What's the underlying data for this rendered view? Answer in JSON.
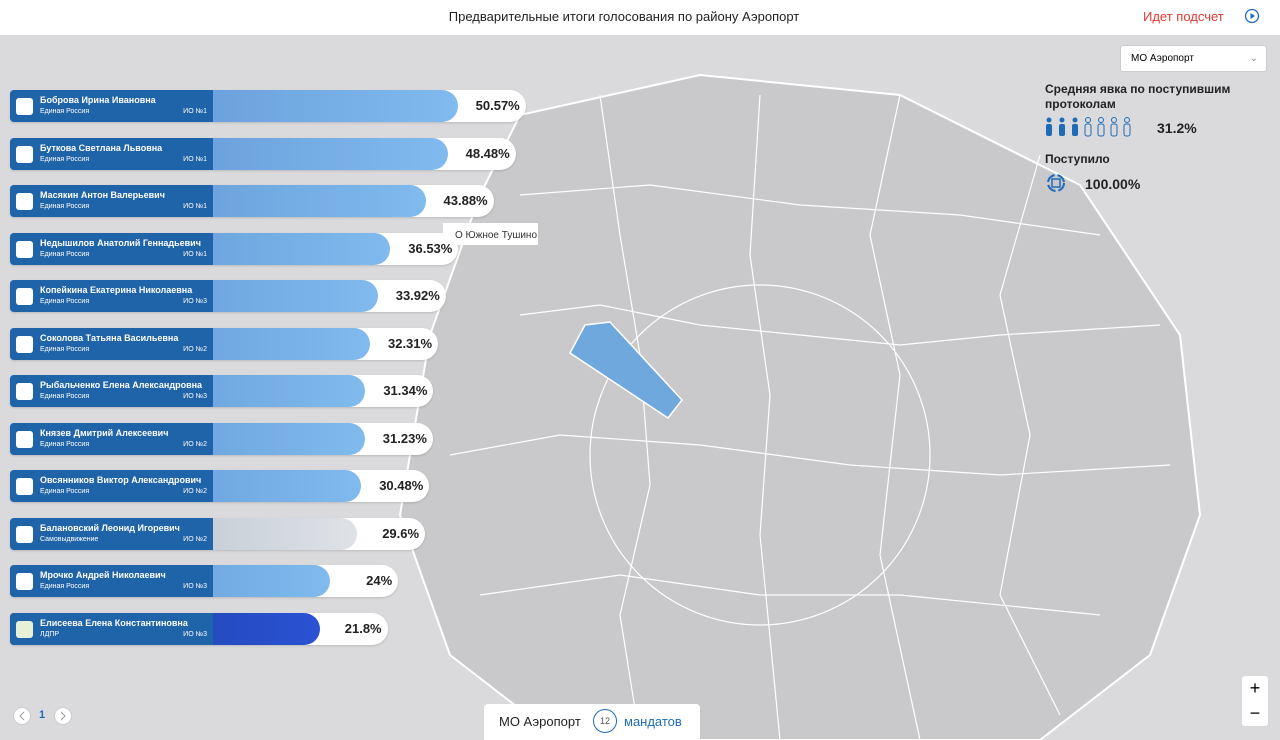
{
  "header": {
    "title": "Предварительные итоги голосования по району Аэропорт",
    "status": "Идет подсчет"
  },
  "district_select": "МО Аэропорт",
  "turnout": {
    "title": "Средняя явка по поступившим протоколам",
    "value": "31.2%",
    "received_label": "Поступило",
    "received_value": "100.00%"
  },
  "map_label": "О Южное Тушино",
  "candidates": [
    {
      "name": "Боброва Ирина Ивановна",
      "party": "Единая Россия",
      "district": "ИО №1",
      "value": 50.57,
      "value_label": "50.57%",
      "color": "blue"
    },
    {
      "name": "Буткова Светлана Львовна",
      "party": "Единая Россия",
      "district": "ИО №1",
      "value": 48.48,
      "value_label": "48.48%",
      "color": "blue"
    },
    {
      "name": "Масякин Антон Валерьевич",
      "party": "Единая Россия",
      "district": "ИО №1",
      "value": 43.88,
      "value_label": "43.88%",
      "color": "blue"
    },
    {
      "name": "Недышилов Анатолий Геннадьевич",
      "party": "Единая Россия",
      "district": "ИО №1",
      "value": 36.53,
      "value_label": "36.53%",
      "color": "blue"
    },
    {
      "name": "Копейкина Екатерина Николаевна",
      "party": "Единая Россия",
      "district": "ИО №3",
      "value": 33.92,
      "value_label": "33.92%",
      "color": "blue"
    },
    {
      "name": "Соколова Татьяна Васильевна",
      "party": "Единая Россия",
      "district": "ИО №2",
      "value": 32.31,
      "value_label": "32.31%",
      "color": "blue"
    },
    {
      "name": "Рыбальченко Елена Александровна",
      "party": "Единая Россия",
      "district": "ИО №3",
      "value": 31.34,
      "value_label": "31.34%",
      "color": "blue"
    },
    {
      "name": "Князев Дмитрий Алексеевич",
      "party": "Единая Россия",
      "district": "ИО №2",
      "value": 31.23,
      "value_label": "31.23%",
      "color": "blue"
    },
    {
      "name": "Овсянников Виктор Александрович",
      "party": "Единая Россия",
      "district": "ИО №2",
      "value": 30.48,
      "value_label": "30.48%",
      "color": "blue"
    },
    {
      "name": "Балановский Леонид Игоревич",
      "party": "Самовыдвижение",
      "district": "ИО №2",
      "value": 29.6,
      "value_label": "29.6%",
      "color": "gray"
    },
    {
      "name": "Мрочко Андрей Николаевич",
      "party": "Единая Россия",
      "district": "ИО №3",
      "value": 24,
      "value_label": "24%",
      "color": "blue"
    },
    {
      "name": "Елисеева Елена Константиновна",
      "party": "ЛДПР",
      "district": "ИО №3",
      "value": 21.8,
      "value_label": "21.8%",
      "color": "dark"
    }
  ],
  "pagination": {
    "page": "1"
  },
  "footer": {
    "district": "МО Аэропорт",
    "mandates": "12",
    "mandates_label": "мандатов"
  },
  "zoom": {
    "in": "+",
    "out": "−"
  }
}
